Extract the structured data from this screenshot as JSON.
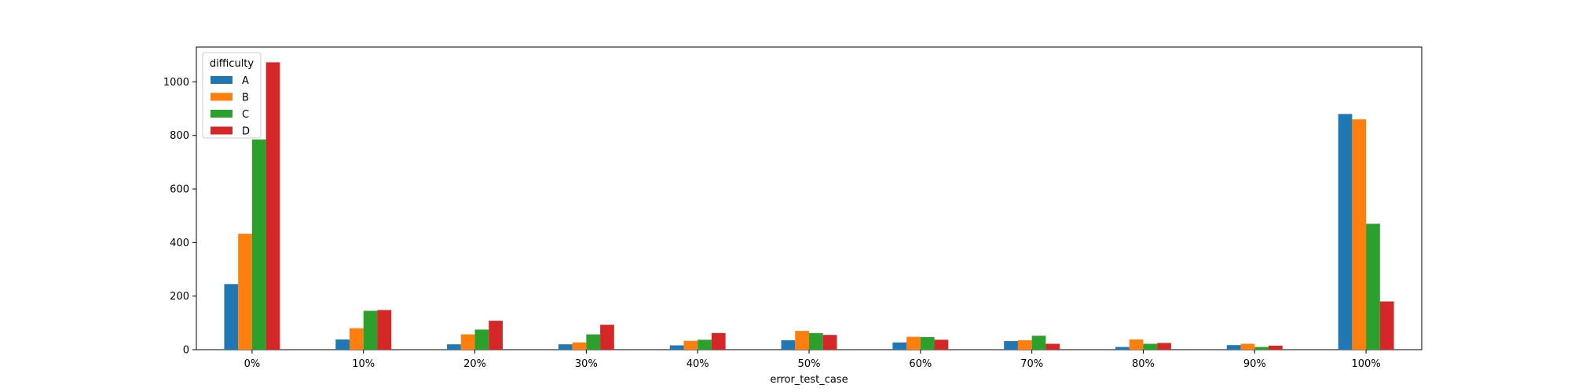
{
  "chart_data": {
    "type": "bar",
    "xlabel": "error_test_case",
    "ylabel": "",
    "ylim": [
      0,
      1130
    ],
    "yticks": [
      0,
      200,
      400,
      600,
      800,
      1000
    ],
    "categories": [
      "0%",
      "10%",
      "20%",
      "30%",
      "40%",
      "50%",
      "60%",
      "70%",
      "80%",
      "90%",
      "100%"
    ],
    "legend": {
      "title": "difficulty",
      "placement": "top-left"
    },
    "series": [
      {
        "name": "A",
        "color": "#1f77b4",
        "values": [
          245,
          38,
          20,
          20,
          16,
          35,
          27,
          32,
          10,
          17,
          880
        ]
      },
      {
        "name": "B",
        "color": "#ff7f0e",
        "values": [
          433,
          80,
          57,
          27,
          33,
          70,
          48,
          35,
          38,
          22,
          860
        ]
      },
      {
        "name": "C",
        "color": "#2ca02c",
        "values": [
          785,
          145,
          75,
          57,
          37,
          62,
          47,
          52,
          22,
          10,
          470
        ]
      },
      {
        "name": "D",
        "color": "#d62728",
        "values": [
          1073,
          148,
          108,
          93,
          62,
          55,
          37,
          22,
          25,
          15,
          180
        ]
      }
    ]
  }
}
